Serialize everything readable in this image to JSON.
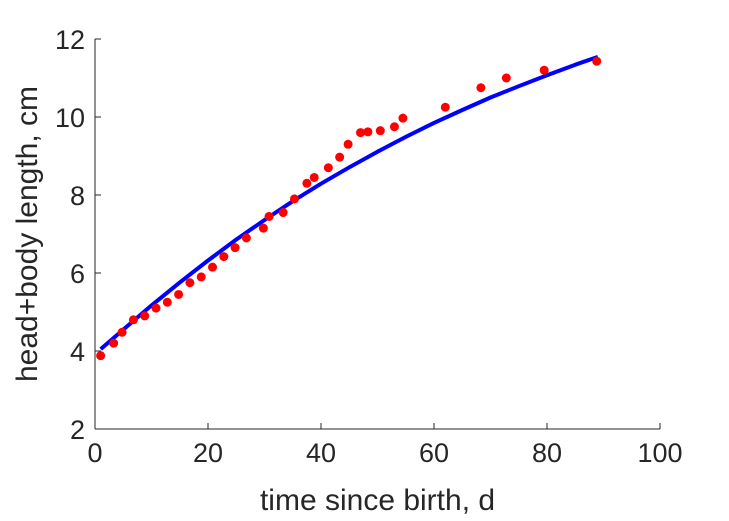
{
  "chart_data": {
    "type": "scatter",
    "xlabel": "time since birth, d",
    "ylabel": "head+body length, cm",
    "xlim": [
      0,
      100
    ],
    "ylim": [
      2,
      12
    ],
    "xticks": [
      0,
      20,
      40,
      60,
      80,
      100
    ],
    "yticks": [
      2,
      4,
      6,
      8,
      10,
      12
    ],
    "grid": false,
    "series": [
      {
        "kind": "scatter",
        "color": "#ff0000",
        "points": [
          [
            1,
            3.88
          ],
          [
            3.3,
            4.2
          ],
          [
            4.8,
            4.48
          ],
          [
            6.8,
            4.8
          ],
          [
            8.8,
            4.9
          ],
          [
            10.8,
            5.1
          ],
          [
            12.8,
            5.25
          ],
          [
            14.8,
            5.45
          ],
          [
            16.8,
            5.75
          ],
          [
            18.8,
            5.9
          ],
          [
            20.8,
            6.15
          ],
          [
            22.8,
            6.42
          ],
          [
            24.8,
            6.65
          ],
          [
            26.8,
            6.9
          ],
          [
            29.8,
            7.15
          ],
          [
            30.8,
            7.45
          ],
          [
            33.3,
            7.55
          ],
          [
            35.3,
            7.9
          ],
          [
            37.5,
            8.3
          ],
          [
            38.8,
            8.45
          ],
          [
            41.3,
            8.7
          ],
          [
            43.3,
            8.97
          ],
          [
            44.8,
            9.3
          ],
          [
            47,
            9.6
          ],
          [
            48.3,
            9.62
          ],
          [
            50.5,
            9.65
          ],
          [
            53,
            9.75
          ],
          [
            54.5,
            9.97
          ],
          [
            62,
            10.25
          ],
          [
            68.3,
            10.75
          ],
          [
            72.8,
            11.0
          ],
          [
            79.5,
            11.2
          ],
          [
            88.8,
            11.43
          ]
        ]
      },
      {
        "kind": "line",
        "color": "#0000ff",
        "x": [
          1,
          5,
          10,
          15,
          20,
          25,
          30,
          35,
          40,
          45,
          50,
          55,
          60,
          65,
          70,
          75,
          80,
          85,
          89
        ],
        "y": [
          4.05,
          4.55,
          5.17,
          5.76,
          6.32,
          6.86,
          7.36,
          7.84,
          8.29,
          8.71,
          9.11,
          9.49,
          9.85,
          10.18,
          10.5,
          10.79,
          11.07,
          11.34,
          11.54
        ]
      }
    ]
  }
}
